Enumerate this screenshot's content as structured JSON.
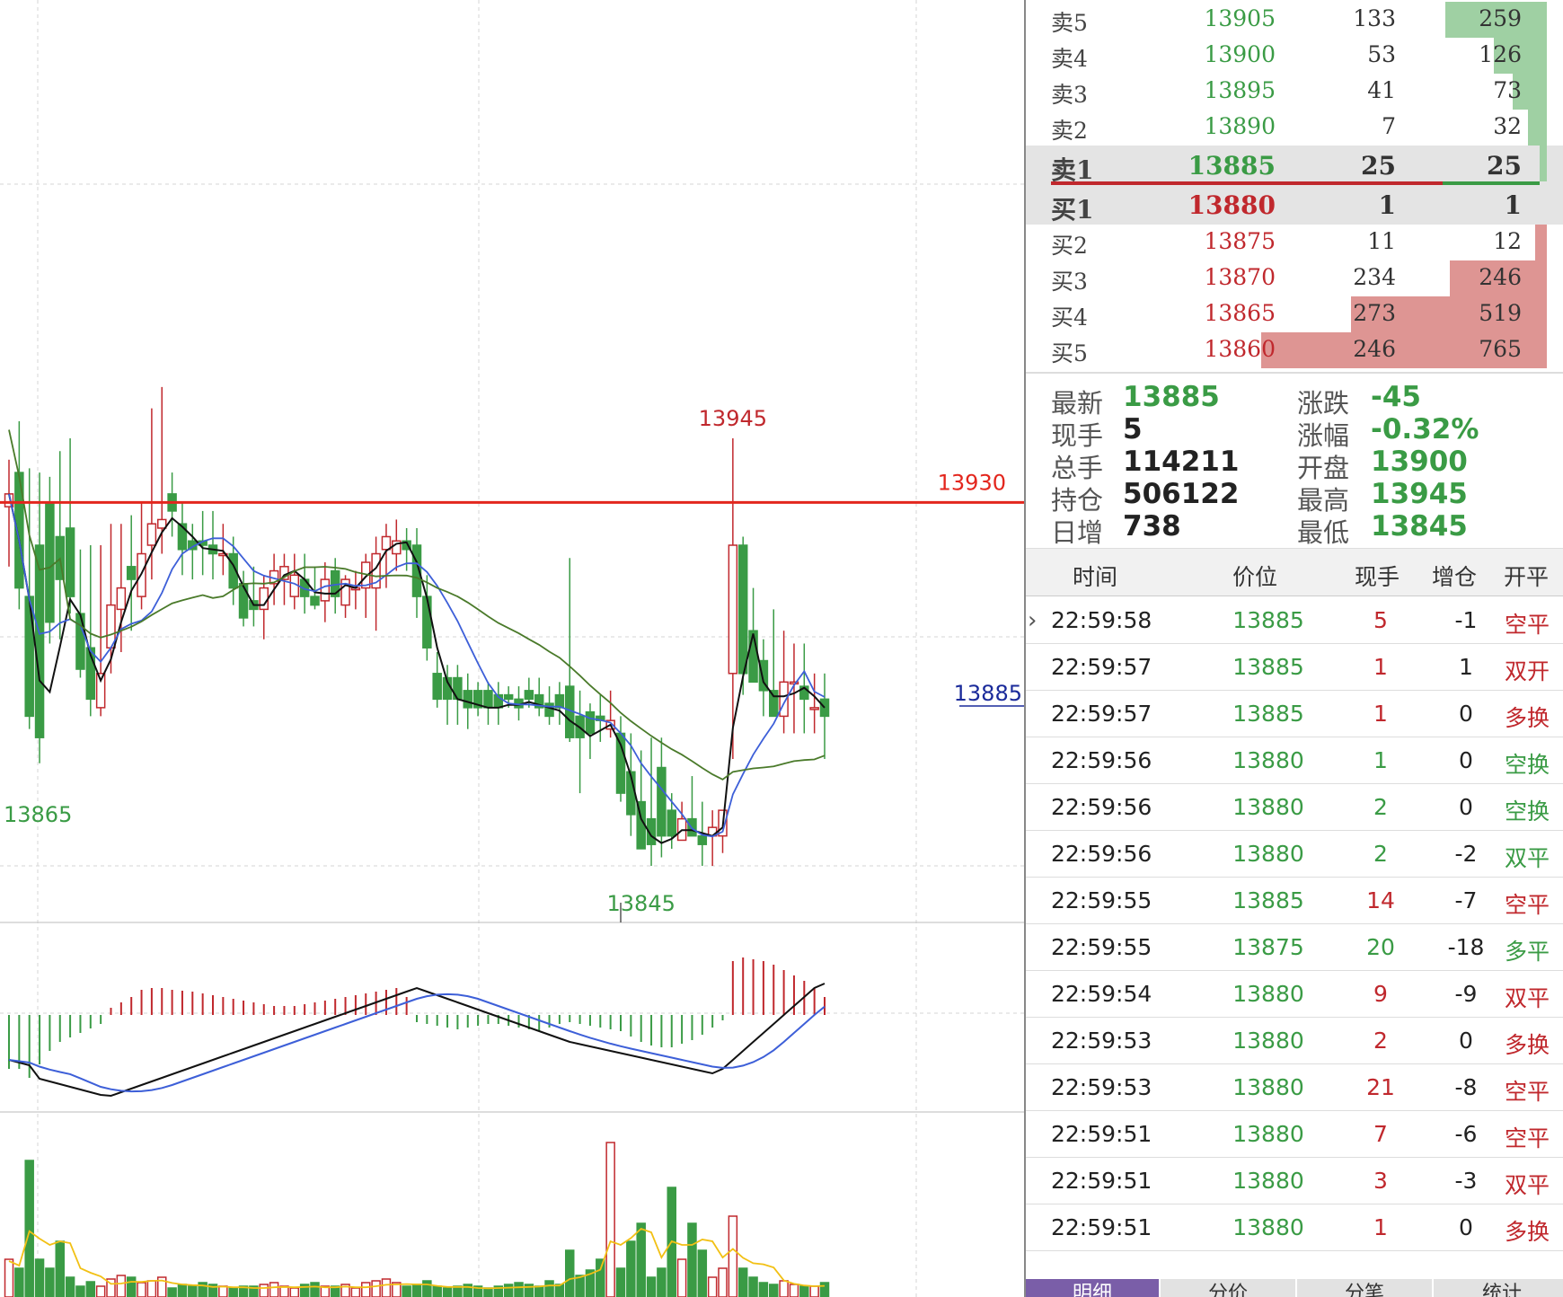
{
  "chart": {
    "label_high": "13945",
    "label_low": "13845",
    "label_left_low": "13865",
    "line_label": "13930",
    "current_label": "13885",
    "colors": {
      "up": "#c0282d",
      "down": "#3a9b45",
      "ma_black": "#111111",
      "ma_blue": "#3d5fd8",
      "ma_green": "#4a7a2a",
      "line": "#e3261d",
      "vol_ma": "#f2c014"
    }
  },
  "orderbook": {
    "asks": [
      {
        "label": "卖5",
        "price": "13905",
        "qty": "133",
        "cum": "259",
        "fill": 0.259
      },
      {
        "label": "卖4",
        "price": "13900",
        "qty": "53",
        "cum": "126",
        "fill": 0.126
      },
      {
        "label": "卖3",
        "price": "13895",
        "qty": "41",
        "cum": "73",
        "fill": 0.073
      },
      {
        "label": "卖2",
        "price": "13890",
        "qty": "7",
        "cum": "32",
        "fill": 0.032
      },
      {
        "label": "卖1",
        "price": "13885",
        "qty": "25",
        "cum": "25",
        "fill": 0.025
      }
    ],
    "bids": [
      {
        "label": "买1",
        "price": "13880",
        "qty": "1",
        "cum": "1",
        "fill": 0.001
      },
      {
        "label": "买2",
        "price": "13875",
        "qty": "11",
        "cum": "12",
        "fill": 0.012
      },
      {
        "label": "买3",
        "price": "13870",
        "qty": "234",
        "cum": "246",
        "fill": 0.246
      },
      {
        "label": "买4",
        "price": "13865",
        "qty": "273",
        "cum": "519",
        "fill": 0.519
      },
      {
        "label": "买5",
        "price": "13860",
        "qty": "246",
        "cum": "765",
        "fill": 0.765
      }
    ]
  },
  "stats": {
    "latest": {
      "label": "最新",
      "value": "13885"
    },
    "change": {
      "label": "涨跌",
      "value": "-45"
    },
    "current_vol": {
      "label": "现手",
      "value": "5"
    },
    "change_pct": {
      "label": "涨幅",
      "value": "-0.32%"
    },
    "total_vol": {
      "label": "总手",
      "value": "114211"
    },
    "open": {
      "label": "开盘",
      "value": "13900"
    },
    "open_interest": {
      "label": "持仓",
      "value": "506122"
    },
    "high": {
      "label": "最高",
      "value": "13945"
    },
    "daily_inc": {
      "label": "日增",
      "value": "738"
    },
    "low": {
      "label": "最低",
      "value": "13845"
    }
  },
  "ticks": {
    "headers": {
      "time": "时间",
      "price": "价位",
      "qty": "现手",
      "oi": "增仓",
      "type": "开平"
    },
    "rows": [
      {
        "time": "22:59:58",
        "price": "13885",
        "qty": "5",
        "oi": "-1",
        "type": "空平",
        "qcolor": "red",
        "tcolor": "red"
      },
      {
        "time": "22:59:57",
        "price": "13885",
        "qty": "1",
        "oi": "1",
        "type": "双开",
        "qcolor": "red",
        "tcolor": "red"
      },
      {
        "time": "22:59:57",
        "price": "13885",
        "qty": "1",
        "oi": "0",
        "type": "多换",
        "qcolor": "red",
        "tcolor": "red"
      },
      {
        "time": "22:59:56",
        "price": "13880",
        "qty": "1",
        "oi": "0",
        "type": "空换",
        "qcolor": "green",
        "tcolor": "green"
      },
      {
        "time": "22:59:56",
        "price": "13880",
        "qty": "2",
        "oi": "0",
        "type": "空换",
        "qcolor": "green",
        "tcolor": "green"
      },
      {
        "time": "22:59:56",
        "price": "13880",
        "qty": "2",
        "oi": "-2",
        "type": "双平",
        "qcolor": "green",
        "tcolor": "green"
      },
      {
        "time": "22:59:55",
        "price": "13885",
        "qty": "14",
        "oi": "-7",
        "type": "空平",
        "qcolor": "red",
        "tcolor": "red"
      },
      {
        "time": "22:59:55",
        "price": "13875",
        "qty": "20",
        "oi": "-18",
        "type": "多平",
        "qcolor": "green",
        "tcolor": "green"
      },
      {
        "time": "22:59:54",
        "price": "13880",
        "qty": "9",
        "oi": "-9",
        "type": "双平",
        "qcolor": "red",
        "tcolor": "red"
      },
      {
        "time": "22:59:53",
        "price": "13880",
        "qty": "2",
        "oi": "0",
        "type": "多换",
        "qcolor": "red",
        "tcolor": "red"
      },
      {
        "time": "22:59:53",
        "price": "13880",
        "qty": "21",
        "oi": "-8",
        "type": "空平",
        "qcolor": "red",
        "tcolor": "red"
      },
      {
        "time": "22:59:51",
        "price": "13880",
        "qty": "7",
        "oi": "-6",
        "type": "空平",
        "qcolor": "red",
        "tcolor": "red"
      },
      {
        "time": "22:59:51",
        "price": "13880",
        "qty": "3",
        "oi": "-3",
        "type": "双平",
        "qcolor": "red",
        "tcolor": "red"
      },
      {
        "time": "22:59:51",
        "price": "13880",
        "qty": "1",
        "oi": "0",
        "type": "多换",
        "qcolor": "red",
        "tcolor": "red"
      }
    ]
  },
  "tabs": [
    {
      "label": "明细",
      "active": true
    },
    {
      "label": "分价",
      "active": false
    },
    {
      "label": "分笔",
      "active": false
    },
    {
      "label": "统计",
      "active": false
    }
  ]
}
